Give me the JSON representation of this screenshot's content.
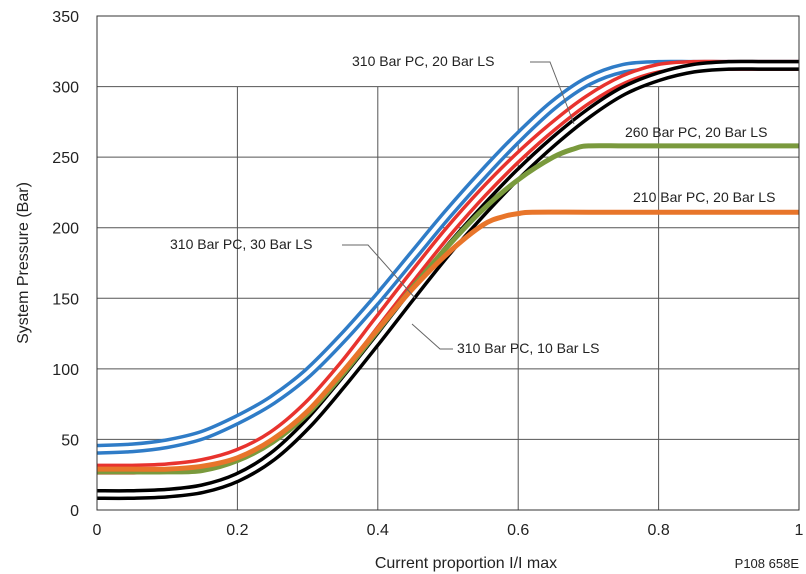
{
  "chart_data": {
    "type": "line",
    "title": "",
    "xlabel": "Current proportion I/I max",
    "ylabel": "System  Pressure (Bar)",
    "xlim": [
      0,
      1
    ],
    "ylim": [
      0,
      350
    ],
    "x_ticks": [
      "0",
      "0.2",
      "0.4",
      "0.6",
      "0.8",
      "1"
    ],
    "y_ticks": [
      "0",
      "50",
      "100",
      "150",
      "200",
      "250",
      "300",
      "350"
    ],
    "grid": "horizontal",
    "legend": "none",
    "figure_code": "P108 658E",
    "series": [
      {
        "label": "310 Bar PC, 30 Bar LS",
        "color": "#2f7cc7",
        "double": true,
        "x": [
          0,
          0.05,
          0.1,
          0.15,
          0.2,
          0.25,
          0.3,
          0.35,
          0.4,
          0.45,
          0.5,
          0.55,
          0.6,
          0.65,
          0.7,
          0.75,
          0.8,
          0.85,
          0.9,
          1.0
        ],
        "y": [
          43,
          44,
          47,
          53,
          64,
          78,
          97,
          122,
          150,
          180,
          210,
          238,
          264,
          287,
          304,
          313,
          315,
          315,
          315,
          315
        ]
      },
      {
        "label": "",
        "color": "#e8332e",
        "double": true,
        "x": [
          0,
          0.05,
          0.1,
          0.15,
          0.2,
          0.25,
          0.3,
          0.35,
          0.4,
          0.45,
          0.5,
          0.55,
          0.6,
          0.65,
          0.7,
          0.75,
          0.8,
          0.85,
          0.9,
          1.0
        ],
        "y": [
          29,
          29,
          30,
          33,
          40,
          53,
          74,
          102,
          134,
          166,
          197,
          225,
          250,
          272,
          291,
          305,
          313,
          315,
          315,
          315
        ]
      },
      {
        "label": "310 Bar PC, 10 Bar LS",
        "color": "#000000",
        "double": true,
        "x": [
          0,
          0.05,
          0.1,
          0.15,
          0.2,
          0.25,
          0.3,
          0.35,
          0.4,
          0.45,
          0.5,
          0.55,
          0.6,
          0.65,
          0.7,
          0.75,
          0.8,
          0.85,
          0.9,
          0.95,
          1.0
        ],
        "y": [
          11,
          11,
          12,
          15,
          23,
          38,
          61,
          90,
          121,
          153,
          184,
          212,
          238,
          261,
          281,
          297,
          307,
          313,
          315,
          315,
          315
        ]
      },
      {
        "label": "260 Bar PC, 20 Bar LS",
        "color": "#7a9a3d",
        "double": false,
        "x": [
          0,
          0.05,
          0.1,
          0.15,
          0.2,
          0.25,
          0.3,
          0.35,
          0.4,
          0.45,
          0.5,
          0.55,
          0.6,
          0.65,
          0.68,
          0.7,
          0.75,
          0.8,
          0.9,
          1.0
        ],
        "y": [
          27,
          27,
          27,
          28,
          35,
          48,
          68,
          96,
          127,
          158,
          187,
          213,
          234,
          250,
          256,
          258,
          258,
          258,
          258,
          258
        ]
      },
      {
        "label": "210 Bar PC, 20 Bar LS",
        "color": "#e8752a",
        "double": false,
        "x": [
          0,
          0.05,
          0.1,
          0.15,
          0.2,
          0.25,
          0.3,
          0.35,
          0.4,
          0.45,
          0.5,
          0.55,
          0.58,
          0.6,
          0.62,
          0.7,
          0.8,
          0.9,
          1.0
        ],
        "y": [
          29,
          29,
          29,
          31,
          37,
          50,
          70,
          98,
          128,
          157,
          182,
          202,
          208,
          210,
          211,
          211,
          211,
          211,
          211
        ]
      }
    ],
    "annotations": [
      {
        "text": "310 Bar PC, 20 Bar LS",
        "point": [
          0.68,
          258
        ]
      },
      {
        "text": "260 Bar PC, 20 Bar LS",
        "point": [
          1.0,
          258
        ]
      },
      {
        "text": "210 Bar PC, 20 Bar LS",
        "point": [
          1.0,
          211
        ]
      },
      {
        "text": "310 Bar PC, 30 Bar LS",
        "point": [
          0.5,
          155
        ]
      },
      {
        "text": "310 Bar PC, 10 Bar LS",
        "point": [
          0.47,
          118
        ]
      }
    ]
  }
}
